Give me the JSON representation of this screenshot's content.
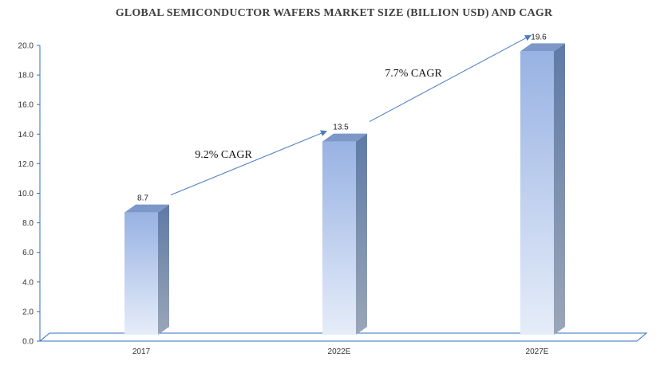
{
  "chart_data": {
    "type": "bar",
    "title": "GLOBAL SEMICONDUCTOR WAFERS MARKET SIZE (BILLION USD) AND CAGR",
    "xlabel": "",
    "ylabel": "",
    "categories": [
      "2017",
      "2022E",
      "2027E"
    ],
    "values": [
      8.7,
      13.5,
      19.6
    ],
    "value_labels": [
      "8.7",
      "13.5",
      "19.6"
    ],
    "ylim": [
      0,
      20
    ],
    "yticks": [
      "0.0",
      "2.0",
      "4.0",
      "6.0",
      "8.0",
      "10.0",
      "12.0",
      "14.0",
      "16.0",
      "18.0",
      "20.0"
    ],
    "grid": false,
    "legend": "none",
    "bar_style": "3d-gradient",
    "annotations": [
      {
        "text": "9.2% CAGR",
        "from": "2017",
        "to": "2022E"
      },
      {
        "text": "7.7% CAGR",
        "from": "2022E",
        "to": "2027E"
      }
    ],
    "colors": {
      "bar_top": "#98b2e3",
      "bar_bottom": "#e6edf9",
      "bar_side": "#5f7aa6",
      "bar_cap": "#7d97c8",
      "axis": "#2f6fbf",
      "arrow": "#4a7cc0"
    }
  }
}
